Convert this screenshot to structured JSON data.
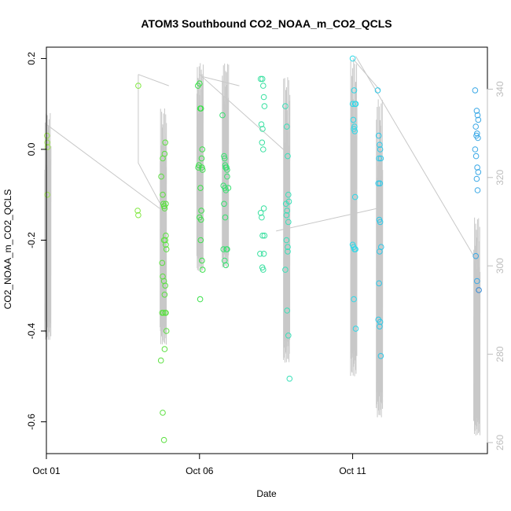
{
  "chart_data": {
    "type": "scatter",
    "title": "ATOM3 Southbound CO2_NOAA_m_CO2_QCLS",
    "xlabel": "Date",
    "ylabel": "CO2_NOAA_m_CO2_QCLS",
    "x_unit": "days",
    "xlim": [
      0,
      14.4
    ],
    "ylim": [
      -0.67,
      0.225
    ],
    "x_ticks": [
      {
        "value": 0,
        "label": "Oct 01"
      },
      {
        "value": 5,
        "label": "Oct 06"
      },
      {
        "value": 10,
        "label": "Oct 11"
      }
    ],
    "y_ticks": [
      -0.6,
      -0.4,
      -0.2,
      0.0,
      0.2
    ],
    "y_tick_labels": [
      "-0.6",
      "-0.4",
      "-0.2",
      "0.0",
      "0.2"
    ],
    "y2_ticks": [
      260,
      280,
      300,
      320,
      340
    ],
    "y2_tick_labels": [
      "260",
      "280",
      "300",
      "320",
      "340"
    ],
    "y2lim": [
      257.5,
      349.5
    ],
    "grid": false,
    "legend": "none",
    "colors": {
      "track": "#c8c8c8",
      "axis": "#000000",
      "right_axis": "#bdbdbd",
      "early": "#9ee84f",
      "green": "#38e048",
      "teal": "#38e0b8",
      "cyan": "#2ed8e8",
      "blue": "#3aa8e6"
    },
    "series": [
      {
        "color": "#9ee84f",
        "x": [
          0.02,
          0.03,
          0.04,
          0.03
        ],
        "y": [
          0.03,
          0.015,
          0.005,
          -0.1
        ]
      },
      {
        "color": "#80e840",
        "x": [
          3.0,
          2.98,
          3.0
        ],
        "y": [
          0.14,
          -0.135,
          -0.145
        ]
      },
      {
        "color": "#5be040",
        "x": [
          3.75,
          3.8,
          3.82,
          3.84,
          3.86,
          3.88,
          3.9,
          3.92,
          3.78,
          3.8,
          3.84,
          3.86,
          3.88,
          3.9,
          3.82,
          3.84,
          3.86,
          3.8,
          3.88,
          3.9,
          3.92,
          3.86,
          3.9,
          3.8,
          3.84,
          3.74,
          3.78,
          3.88,
          3.85
        ],
        "y": [
          -0.06,
          -0.1,
          -0.12,
          -0.125,
          -0.13,
          -0.2,
          -0.21,
          -0.22,
          -0.25,
          -0.28,
          -0.29,
          -0.32,
          -0.36,
          -0.36,
          -0.36,
          -0.2,
          -0.01,
          -0.02,
          0.015,
          -0.19,
          -0.4,
          -0.44,
          -0.12,
          -0.58,
          -0.64,
          -0.465,
          -0.36,
          -0.3,
          -0.125
        ]
      },
      {
        "color": "#38e048",
        "x": [
          4.95,
          5.0,
          5.02,
          5.05,
          5.08,
          5.1,
          4.98,
          5.03,
          5.06,
          5.0,
          5.04,
          5.08,
          5.1,
          5.02,
          4.96,
          5.05,
          5.07,
          5.09
        ],
        "y": [
          0.14,
          0.145,
          0.09,
          0.09,
          -0.04,
          -0.045,
          -0.035,
          -0.085,
          -0.135,
          -0.15,
          -0.2,
          -0.245,
          -0.265,
          -0.33,
          -0.04,
          -0.155,
          -0.02,
          0.0
        ]
      },
      {
        "color": "#38e070",
        "x": [
          5.75,
          5.8,
          5.82,
          5.85,
          5.88,
          5.9,
          5.78,
          5.83,
          5.86,
          5.8,
          5.84,
          5.88,
          5.9,
          5.82,
          5.86,
          5.9,
          5.94,
          5.78,
          5.84
        ],
        "y": [
          0.075,
          -0.015,
          -0.02,
          -0.04,
          -0.04,
          -0.045,
          -0.08,
          -0.085,
          -0.09,
          -0.12,
          -0.15,
          -0.22,
          -0.22,
          -0.245,
          -0.255,
          -0.06,
          -0.085,
          -0.22,
          -0.035
        ]
      },
      {
        "color": "#38e0a0",
        "x": [
          7.0,
          7.05,
          7.08,
          7.1,
          7.12,
          7.02,
          7.06,
          7.04,
          7.08,
          7.1,
          7.0,
          7.03,
          7.06,
          7.1,
          7.05,
          7.08,
          6.98,
          7.12
        ],
        "y": [
          0.155,
          0.155,
          0.14,
          0.115,
          0.095,
          0.055,
          0.045,
          0.015,
          0.0,
          -0.13,
          -0.14,
          -0.15,
          -0.19,
          -0.23,
          -0.26,
          -0.265,
          -0.23,
          -0.19
        ]
      },
      {
        "color": "#38e0b8",
        "x": [
          7.8,
          7.85,
          7.88,
          7.9,
          7.92,
          7.82,
          7.86,
          7.9,
          7.84,
          7.88,
          7.8,
          7.86,
          7.9,
          7.94,
          7.88,
          7.84
        ],
        "y": [
          0.095,
          0.05,
          -0.015,
          -0.1,
          -0.115,
          -0.12,
          -0.135,
          -0.16,
          -0.2,
          -0.215,
          -0.265,
          -0.355,
          -0.41,
          -0.505,
          -0.225,
          -0.145
        ]
      },
      {
        "color": "#2ed8e8",
        "x": [
          10.0,
          10.05,
          10.08,
          10.1,
          10.02,
          10.06,
          10.04,
          10.08,
          10.0,
          10.03,
          10.06,
          10.09,
          10.04,
          10.1,
          10.0,
          10.07
        ],
        "y": [
          0.2,
          0.13,
          0.1,
          0.1,
          0.065,
          0.05,
          0.045,
          -0.105,
          -0.21,
          -0.215,
          -0.22,
          -0.22,
          -0.33,
          -0.395,
          0.1,
          0.04
        ]
      },
      {
        "color": "#2ec8e8",
        "x": [
          10.82,
          10.85,
          10.88,
          10.9,
          10.92,
          10.86,
          10.89,
          10.84,
          10.87,
          10.9,
          10.93,
          10.88,
          10.86,
          10.84,
          10.9,
          10.88,
          10.92
        ],
        "y": [
          0.13,
          0.03,
          0.01,
          0.0,
          -0.02,
          -0.02,
          -0.075,
          -0.075,
          -0.155,
          -0.16,
          -0.215,
          -0.225,
          -0.295,
          -0.375,
          -0.38,
          -0.39,
          -0.455
        ]
      },
      {
        "color": "#3aa8e6",
        "x": [
          14.0,
          14.05,
          14.08,
          14.1,
          14.02,
          14.06,
          14.04,
          14.09,
          14.0,
          14.03,
          14.07,
          14.1,
          14.05,
          14.08,
          14.02,
          14.06
        ],
        "y": [
          0.13,
          0.085,
          0.075,
          0.065,
          0.05,
          0.035,
          0.03,
          0.025,
          0.0,
          -0.015,
          -0.04,
          -0.05,
          -0.065,
          -0.09,
          -0.235,
          -0.29
        ]
      },
      {
        "color": "#2f86d6",
        "x": [
          14.12
        ],
        "y": [
          -0.31
        ]
      }
    ],
    "track_segments": [
      [
        [
          0.0,
          0.055
        ],
        [
          3.7,
          -0.13
        ]
      ],
      [
        [
          3.0,
          0.165
        ],
        [
          4.0,
          0.14
        ]
      ],
      [
        [
          3.0,
          0.165
        ],
        [
          3.0,
          -0.03
        ],
        [
          3.8,
          -0.13
        ]
      ],
      [
        [
          5.0,
          0.165
        ],
        [
          7.9,
          -0.01
        ]
      ],
      [
        [
          5.1,
          0.16
        ],
        [
          6.3,
          0.14
        ]
      ],
      [
        [
          7.5,
          -0.18
        ],
        [
          10.8,
          -0.13
        ]
      ],
      [
        [
          10.1,
          0.205
        ],
        [
          14.0,
          -0.24
        ]
      ],
      [
        [
          10.0,
          0.2
        ],
        [
          10.9,
          0.13
        ]
      ]
    ],
    "track_vertical_clusters": [
      {
        "x": 0.05,
        "ymin": -0.42,
        "ymax": 0.08
      },
      {
        "x": 3.82,
        "ymin": -0.43,
        "ymax": 0.09
      },
      {
        "x": 5.02,
        "ymin": -0.27,
        "ymax": 0.19
      },
      {
        "x": 5.85,
        "ymin": -0.26,
        "ymax": 0.19
      },
      {
        "x": 7.85,
        "ymin": -0.47,
        "ymax": 0.16
      },
      {
        "x": 10.04,
        "ymin": -0.5,
        "ymax": 0.2
      },
      {
        "x": 10.88,
        "ymin": -0.59,
        "ymax": 0.11
      },
      {
        "x": 14.06,
        "ymin": -0.63,
        "ymax": -0.15
      }
    ]
  }
}
